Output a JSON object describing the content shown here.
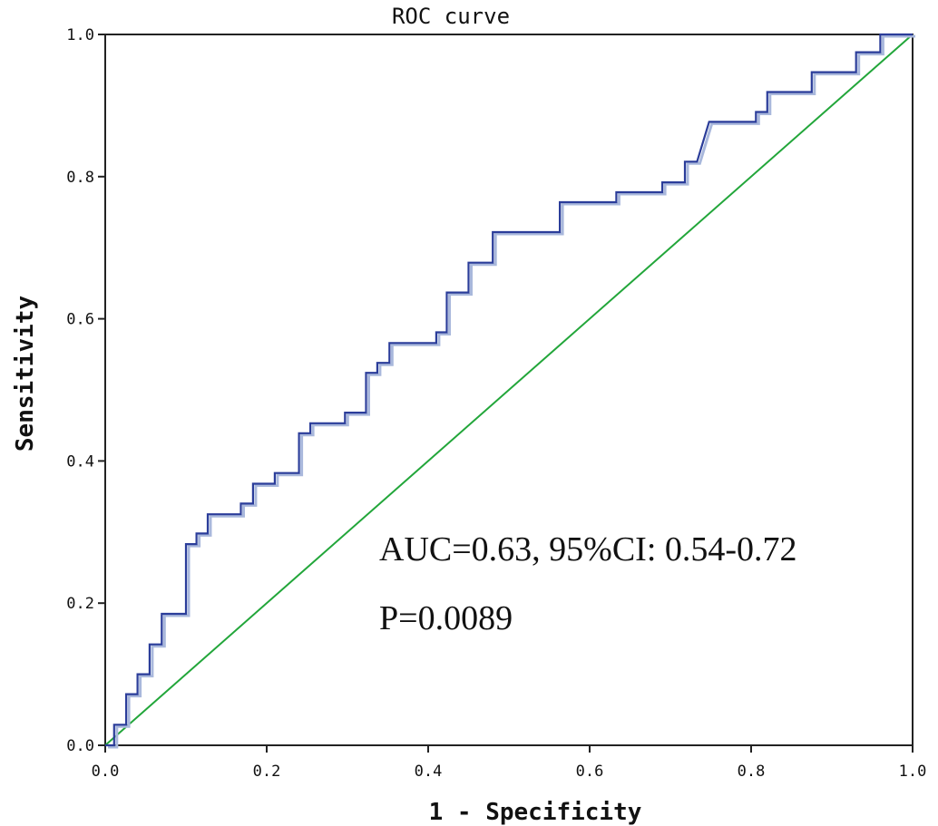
{
  "chart_data": {
    "type": "line",
    "title": "ROC curve",
    "xlabel": "1 - Specificity",
    "ylabel": "Sensitivity",
    "xlim": [
      0,
      1
    ],
    "ylim": [
      0,
      1
    ],
    "x_ticks": [
      "0.0",
      "0.2",
      "0.4",
      "0.6",
      "0.8",
      "1.0"
    ],
    "y_ticks": [
      "0.0",
      "0.2",
      "0.4",
      "0.6",
      "0.8",
      "1.0"
    ],
    "grid": false,
    "annotations": [
      "AUC=0.63, 95%CI: 0.54-0.72",
      "P=0.0089"
    ],
    "colors": {
      "roc": "#2b3d9a",
      "roc_shadow": "#a9b8dc",
      "reference": "#22a63a"
    },
    "series": [
      {
        "role": "roc",
        "points": [
          [
            0.0,
            0.0
          ],
          [
            0.011,
            0.0
          ],
          [
            0.011,
            0.029
          ],
          [
            0.026,
            0.029
          ],
          [
            0.026,
            0.072
          ],
          [
            0.04,
            0.072
          ],
          [
            0.04,
            0.1
          ],
          [
            0.055,
            0.1
          ],
          [
            0.055,
            0.142
          ],
          [
            0.07,
            0.142
          ],
          [
            0.07,
            0.185
          ],
          [
            0.1,
            0.185
          ],
          [
            0.1,
            0.283
          ],
          [
            0.113,
            0.283
          ],
          [
            0.113,
            0.298
          ],
          [
            0.127,
            0.298
          ],
          [
            0.127,
            0.325
          ],
          [
            0.168,
            0.325
          ],
          [
            0.168,
            0.34
          ],
          [
            0.183,
            0.34
          ],
          [
            0.183,
            0.368
          ],
          [
            0.21,
            0.368
          ],
          [
            0.21,
            0.383
          ],
          [
            0.24,
            0.383
          ],
          [
            0.24,
            0.439
          ],
          [
            0.254,
            0.439
          ],
          [
            0.254,
            0.453
          ],
          [
            0.297,
            0.453
          ],
          [
            0.297,
            0.468
          ],
          [
            0.323,
            0.468
          ],
          [
            0.323,
            0.524
          ],
          [
            0.337,
            0.524
          ],
          [
            0.337,
            0.538
          ],
          [
            0.352,
            0.538
          ],
          [
            0.352,
            0.566
          ],
          [
            0.41,
            0.566
          ],
          [
            0.41,
            0.581
          ],
          [
            0.423,
            0.581
          ],
          [
            0.423,
            0.594
          ],
          [
            0.423,
            0.637
          ],
          [
            0.45,
            0.637
          ],
          [
            0.45,
            0.679
          ],
          [
            0.48,
            0.679
          ],
          [
            0.48,
            0.722
          ],
          [
            0.563,
            0.722
          ],
          [
            0.563,
            0.764
          ],
          [
            0.633,
            0.764
          ],
          [
            0.633,
            0.778
          ],
          [
            0.69,
            0.778
          ],
          [
            0.69,
            0.792
          ],
          [
            0.718,
            0.792
          ],
          [
            0.718,
            0.821
          ],
          [
            0.733,
            0.821
          ],
          [
            0.748,
            0.877
          ],
          [
            0.806,
            0.877
          ],
          [
            0.806,
            0.891
          ],
          [
            0.82,
            0.891
          ],
          [
            0.82,
            0.919
          ],
          [
            0.875,
            0.919
          ],
          [
            0.875,
            0.947
          ],
          [
            0.93,
            0.947
          ],
          [
            0.93,
            0.975
          ],
          [
            0.96,
            0.975
          ],
          [
            0.96,
            1.0
          ],
          [
            1.0,
            1.0
          ]
        ]
      },
      {
        "role": "reference",
        "points": [
          [
            0.0,
            0.0
          ],
          [
            1.0,
            1.0
          ]
        ]
      }
    ]
  }
}
